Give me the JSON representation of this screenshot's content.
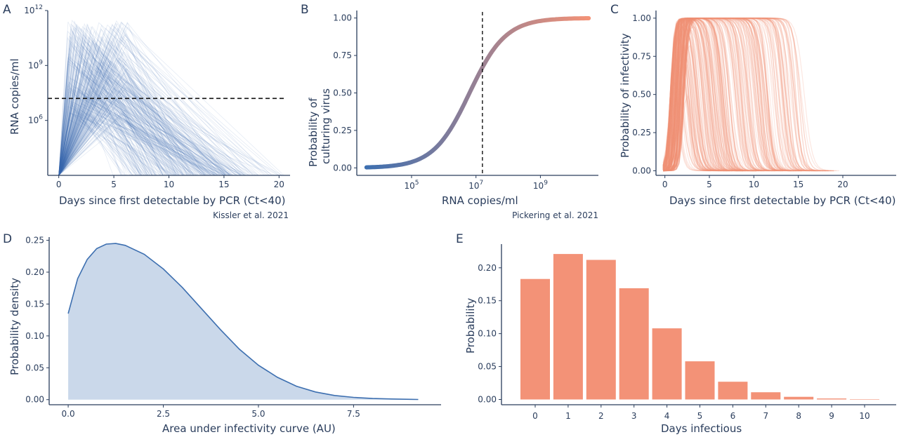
{
  "colors": {
    "blue": "#3d6fb0",
    "salmon": "#f39277",
    "area_fill": "#cad8ea",
    "axis": "#2a3d5c"
  },
  "chart_data": [
    {
      "panel": "A",
      "type": "line",
      "xlabel": "Days since first detectable by PCR (Ct<40)",
      "ylabel": "RNA copies/ml",
      "y_scale": "log10",
      "xlim": [
        -1,
        21
      ],
      "ylim_log10": [
        3,
        12
      ],
      "x_ticks": [
        0,
        5,
        10,
        15,
        20
      ],
      "y_ticks": [
        {
          "log10": 6,
          "label_base": "10",
          "label_exp": "6"
        },
        {
          "log10": 9,
          "label_base": "10",
          "label_exp": "9"
        },
        {
          "log10": 12,
          "label_base": "10",
          "label_exp": "12"
        }
      ],
      "reference_line": {
        "orientation": "horizontal",
        "style": "dashed",
        "y_log10": 7.2
      },
      "series_description": "many semi-transparent simulated viral load trajectories rising from 10^3 at day 0 to peaks of about 10^7–10^11.5 within 1–6 days, then declining to zero by day 10–20",
      "source": "Kissler et al. 2021"
    },
    {
      "panel": "B",
      "type": "line",
      "xlabel": "RNA copies/ml",
      "ylabel": [
        "Probability of",
        "culturing virus"
      ],
      "x_scale": "log10",
      "xlim_log10": [
        3.3,
        10.8
      ],
      "ylim": [
        -0.05,
        1.05
      ],
      "x_ticks": [
        {
          "log10": 5,
          "label_base": "10",
          "label_exp": "5"
        },
        {
          "log10": 7,
          "label_base": "10",
          "label_exp": "7"
        },
        {
          "log10": 9,
          "label_base": "10",
          "label_exp": "9"
        }
      ],
      "y_ticks": [
        "0.00",
        "0.25",
        "0.50",
        "0.75",
        "1.00"
      ],
      "curve": {
        "kind": "logistic",
        "x_range_log10": [
          3.6,
          10.5
        ],
        "midpoint_log10": 6.8,
        "slope": 1.78
      },
      "reference_line": {
        "orientation": "vertical",
        "style": "dashed",
        "x_log10": 7.2
      },
      "gradient": [
        "#3d6fb0",
        "#f39277"
      ],
      "source": "Pickering et al. 2021"
    },
    {
      "panel": "C",
      "type": "line",
      "xlabel": "Days since first detectable by PCR (Ct<40)",
      "ylabel": "Probability of infectivity",
      "xlim": [
        -1,
        26
      ],
      "ylim": [
        -0.03,
        1.05
      ],
      "x_ticks": [
        0,
        5,
        10,
        15,
        20
      ],
      "y_ticks": [
        "0.00",
        "0.25",
        "0.50",
        "0.75",
        "1.00"
      ],
      "series_description": "many semi-transparent infectivity probability curves that rise steeply to about 1.0 within 0–2 days and fall back to 0 between day 1 and day 20"
    },
    {
      "panel": "D",
      "type": "area",
      "xlabel": "Area under infectivity curve (AU)",
      "ylabel": "Probability density",
      "xlim": [
        -0.5,
        9.8
      ],
      "ylim": [
        -0.008,
        0.255
      ],
      "x_ticks": [
        "0.0",
        "2.5",
        "5.0",
        "7.5"
      ],
      "y_ticks": [
        "0.00",
        "0.05",
        "0.10",
        "0.15",
        "0.20",
        "0.25"
      ],
      "x": [
        0,
        0.25,
        0.5,
        0.75,
        1.0,
        1.25,
        1.5,
        2.0,
        2.5,
        3.0,
        3.5,
        4.0,
        4.5,
        5.0,
        5.5,
        6.0,
        6.5,
        7.0,
        7.5,
        8.0,
        8.5,
        9.0,
        9.2
      ],
      "y": [
        0.135,
        0.19,
        0.22,
        0.237,
        0.244,
        0.245,
        0.242,
        0.228,
        0.205,
        0.176,
        0.143,
        0.11,
        0.079,
        0.054,
        0.035,
        0.021,
        0.012,
        0.0065,
        0.0035,
        0.0018,
        0.001,
        0.0005,
        0.0003
      ]
    },
    {
      "panel": "E",
      "type": "bar",
      "xlabel": "Days infectious",
      "ylabel": "Probability",
      "ylim": [
        -0.008,
        0.236
      ],
      "categories": [
        "0",
        "1",
        "2",
        "3",
        "4",
        "5",
        "6",
        "7",
        "8",
        "9",
        "10"
      ],
      "values": [
        0.183,
        0.221,
        0.212,
        0.169,
        0.108,
        0.058,
        0.027,
        0.011,
        0.004,
        0.0015,
        0.0005
      ],
      "y_ticks": [
        "0.00",
        "0.05",
        "0.10",
        "0.15",
        "0.20"
      ]
    }
  ]
}
